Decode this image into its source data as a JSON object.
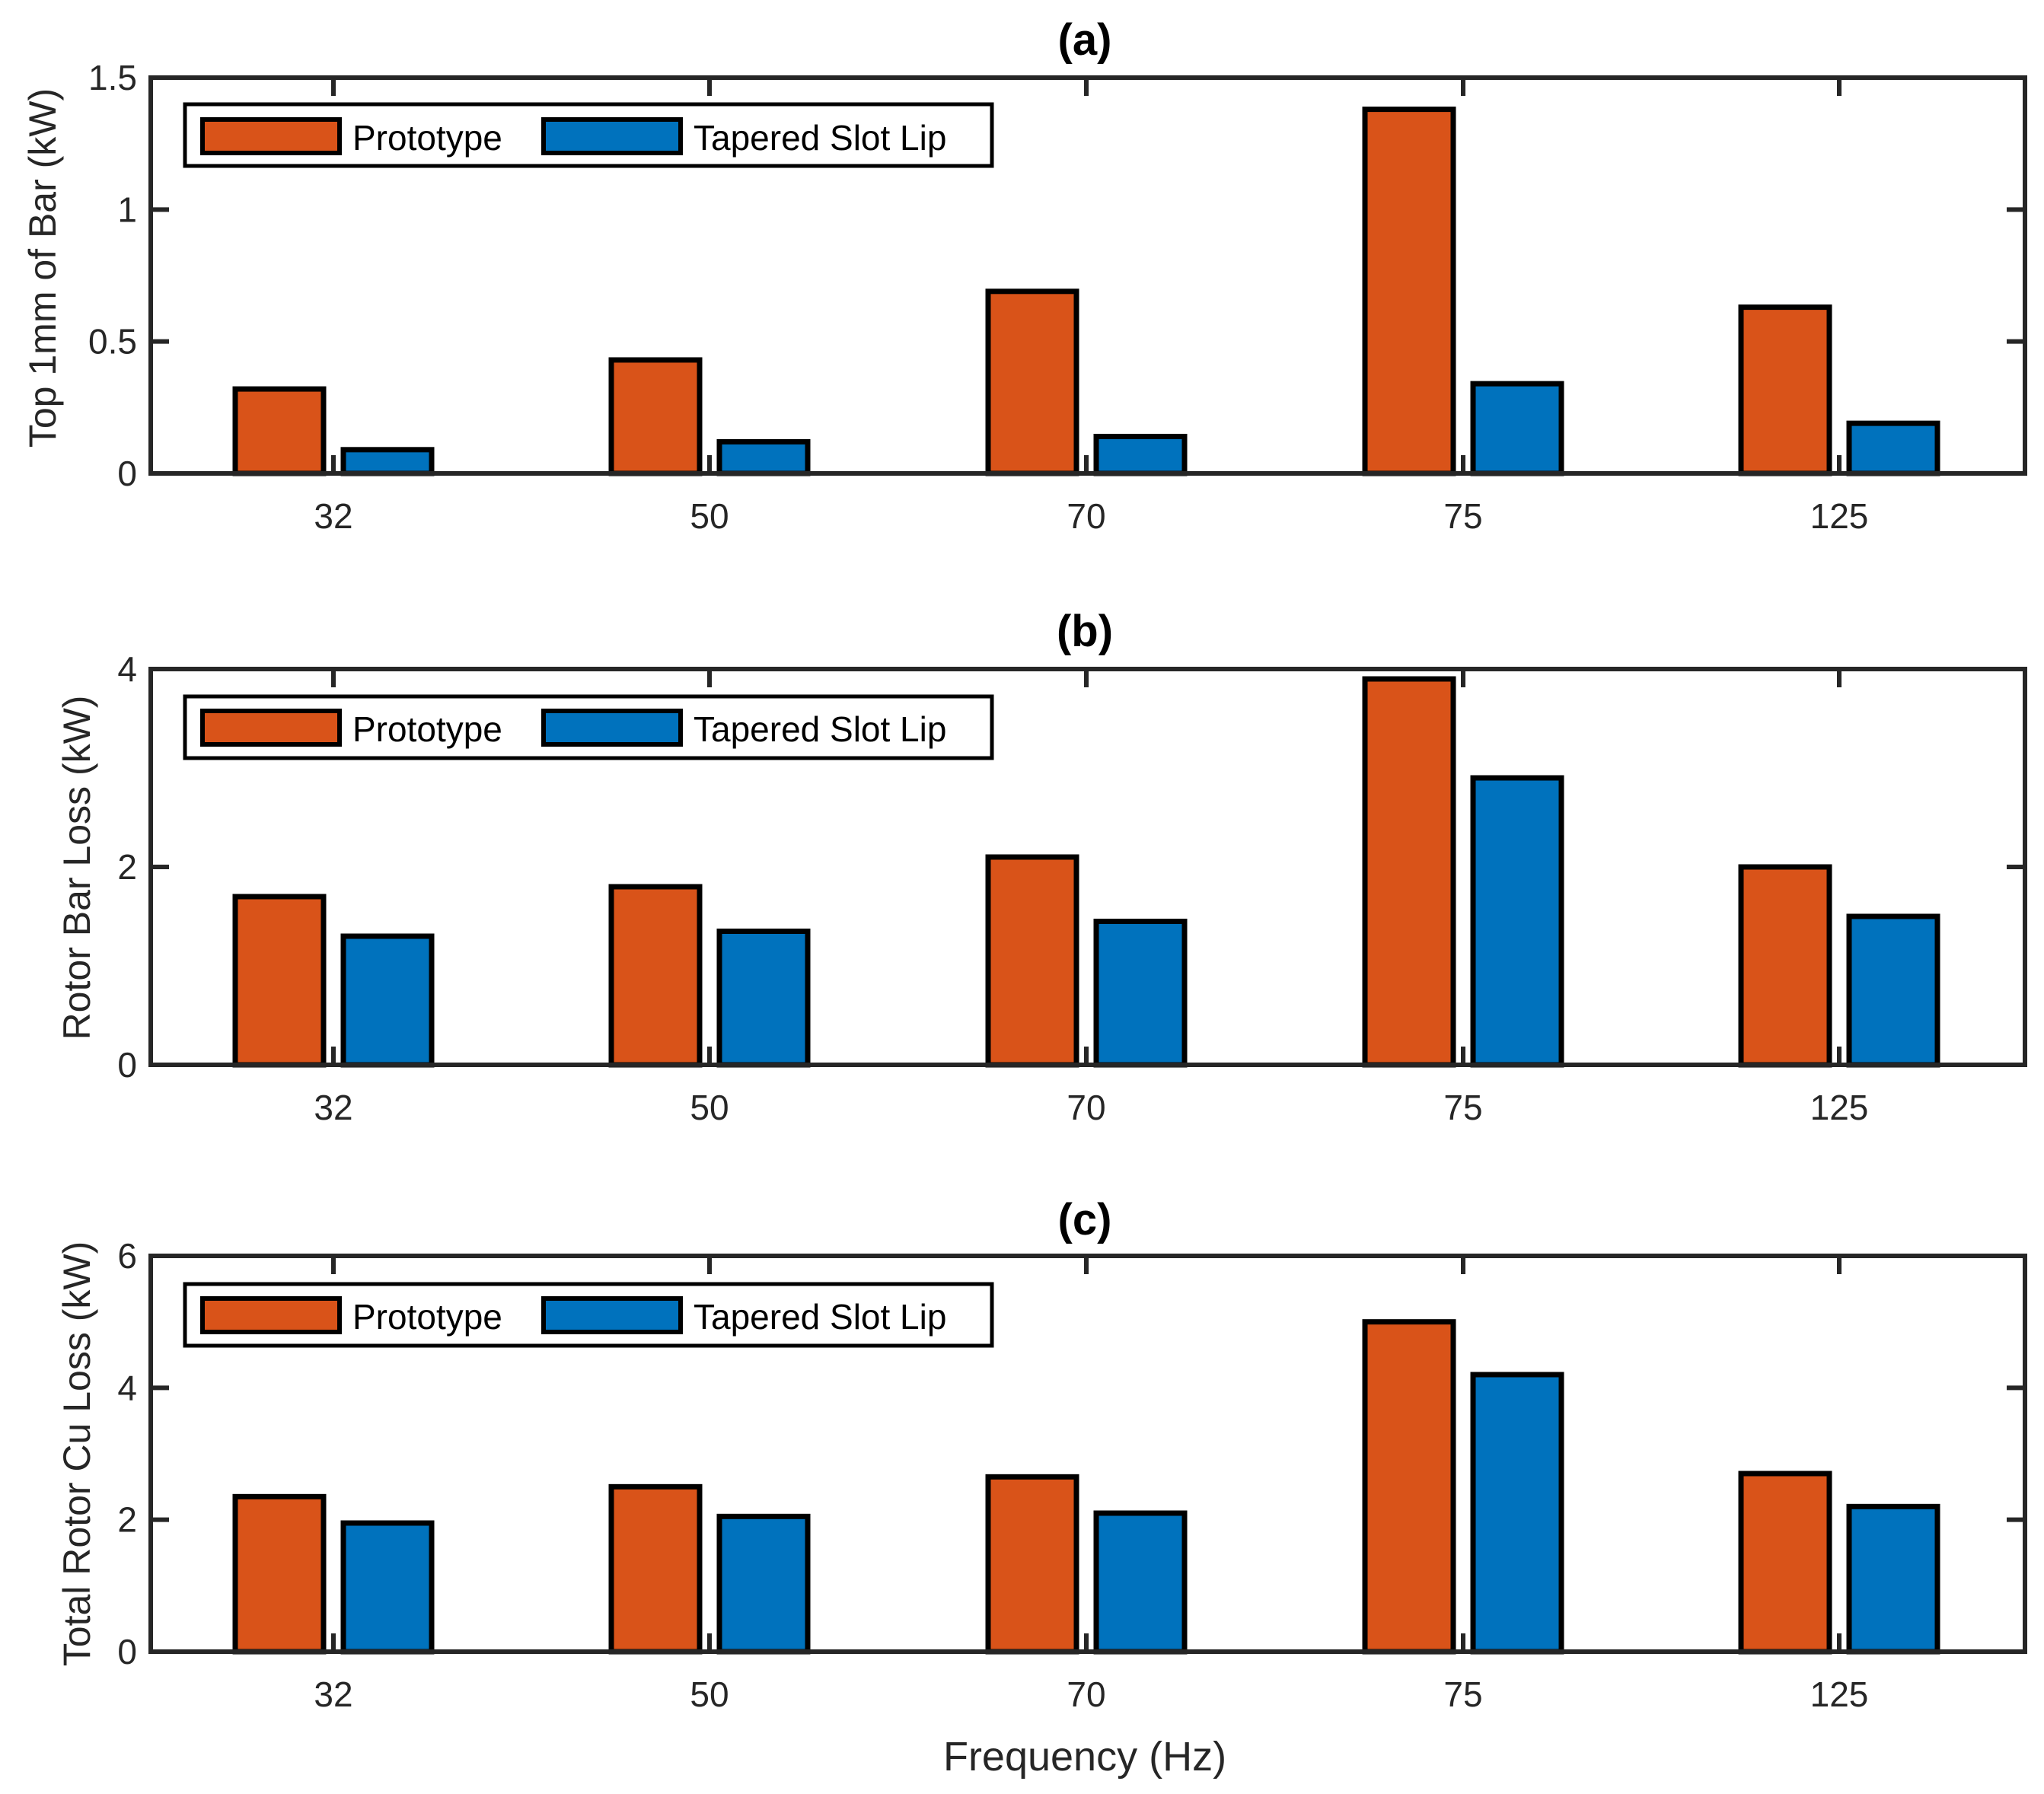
{
  "chart_data": [
    {
      "type": "bar",
      "panel": "a",
      "title": "(a)",
      "ylabel": "Top 1mm of Bar (kW)",
      "xlabel": "",
      "ylim": [
        0,
        1.5
      ],
      "yticks": [
        "0",
        "0.5",
        "1",
        "1.5"
      ],
      "yticks_values": [
        0,
        0.5,
        1,
        1.5
      ],
      "categories": [
        "32",
        "50",
        "70",
        "75",
        "125"
      ],
      "series": [
        {
          "name": "Prototype",
          "color": "#D95319",
          "values": [
            0.32,
            0.43,
            0.69,
            1.38,
            0.63
          ]
        },
        {
          "name": "Tapered Slot Lip",
          "color": "#0072BD",
          "values": [
            0.09,
            0.12,
            0.14,
            0.34,
            0.19
          ]
        }
      ],
      "legend": "top-left"
    },
    {
      "type": "bar",
      "panel": "b",
      "title": "(b)",
      "ylabel": "Rotor Bar Loss (kW)",
      "xlabel": "",
      "ylim": [
        0,
        4
      ],
      "yticks": [
        "0",
        "2",
        "4"
      ],
      "yticks_values": [
        0,
        2,
        4
      ],
      "categories": [
        "32",
        "50",
        "70",
        "75",
        "125"
      ],
      "series": [
        {
          "name": "Prototype",
          "color": "#D95319",
          "values": [
            1.7,
            1.8,
            2.1,
            3.9,
            2.0
          ]
        },
        {
          "name": "Tapered Slot Lip",
          "color": "#0072BD",
          "values": [
            1.3,
            1.35,
            1.45,
            2.9,
            1.5
          ]
        }
      ],
      "legend": "top-left"
    },
    {
      "type": "bar",
      "panel": "c",
      "title": "(c)",
      "ylabel": "Total Rotor Cu Loss (kW)",
      "xlabel": "Frequency (Hz)",
      "ylim": [
        0,
        6
      ],
      "yticks": [
        "0",
        "2",
        "4",
        "6"
      ],
      "yticks_values": [
        0,
        2,
        4,
        6
      ],
      "categories": [
        "32",
        "50",
        "70",
        "75",
        "125"
      ],
      "series": [
        {
          "name": "Prototype",
          "color": "#D95319",
          "values": [
            2.35,
            2.5,
            2.65,
            5.0,
            2.7
          ]
        },
        {
          "name": "Tapered Slot Lip",
          "color": "#0072BD",
          "values": [
            1.95,
            2.05,
            2.1,
            4.2,
            2.2
          ]
        }
      ],
      "legend": "top-left"
    }
  ],
  "colors": {
    "axis": "#262626",
    "bar_edge": "#000000"
  }
}
